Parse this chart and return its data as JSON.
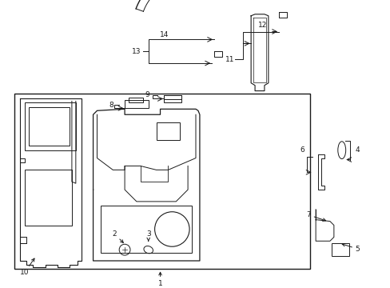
{
  "bg_color": "#ffffff",
  "line_color": "#1a1a1a",
  "fig_width": 4.89,
  "fig_height": 3.6,
  "dpi": 100,
  "font_size": 6.5
}
